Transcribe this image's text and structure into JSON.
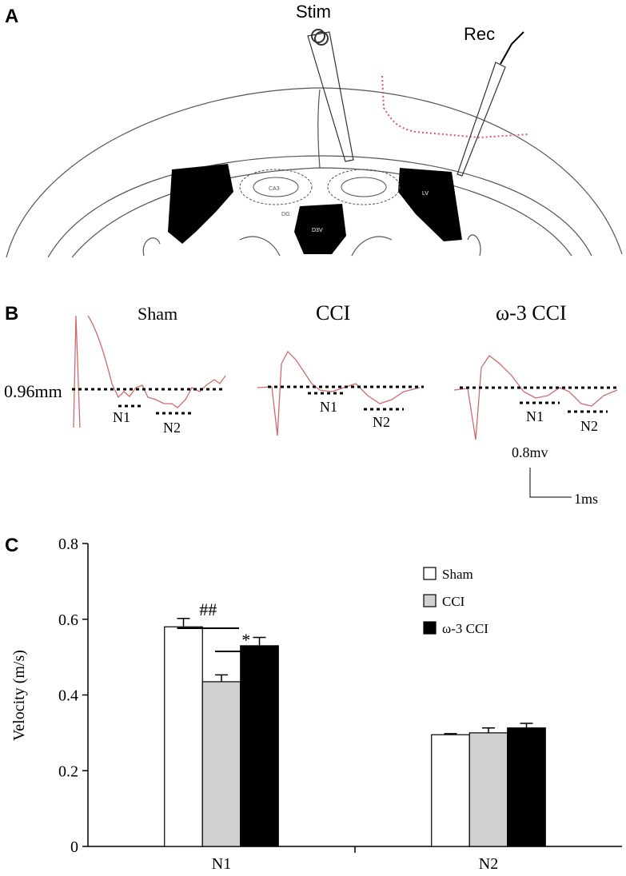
{
  "panel_a": {
    "label": "A",
    "stim": "Stim",
    "rec": "Rec",
    "regions": [
      "CA3",
      "DG",
      "D3V",
      "LV"
    ]
  },
  "panel_b": {
    "label": "B",
    "groups": [
      "Sham",
      "CCI",
      "ω-3 CCI"
    ],
    "distance": "0.96mm",
    "peaks": [
      [
        "N1",
        "N2"
      ],
      [
        "N1",
        "N2"
      ],
      [
        "N1",
        "N2"
      ]
    ],
    "scale_y": "0.8mv",
    "scale_x": "1ms"
  },
  "panel_c": {
    "label": "C"
  },
  "chart_data": {
    "type": "bar",
    "y_label": "Velocity (m/s)",
    "categories": [
      "N1",
      "N2"
    ],
    "series": [
      {
        "name": "Sham",
        "color": "#ffffff",
        "values": [
          0.58,
          0.295
        ],
        "errors": [
          0.022,
          0.003
        ]
      },
      {
        "name": "CCI",
        "color": "#d0d0d0",
        "values": [
          0.435,
          0.3
        ],
        "errors": [
          0.018,
          0.013
        ]
      },
      {
        "name": "ω-3 CCI",
        "color": "#000000",
        "values": [
          0.53,
          0.313
        ],
        "errors": [
          0.022,
          0.012
        ]
      }
    ],
    "ylim": [
      0,
      0.8
    ],
    "yticks": [
      0,
      0.2,
      0.4,
      0.6,
      0.8
    ],
    "annotations": [
      "##",
      "*"
    ],
    "legend": "upper right"
  }
}
